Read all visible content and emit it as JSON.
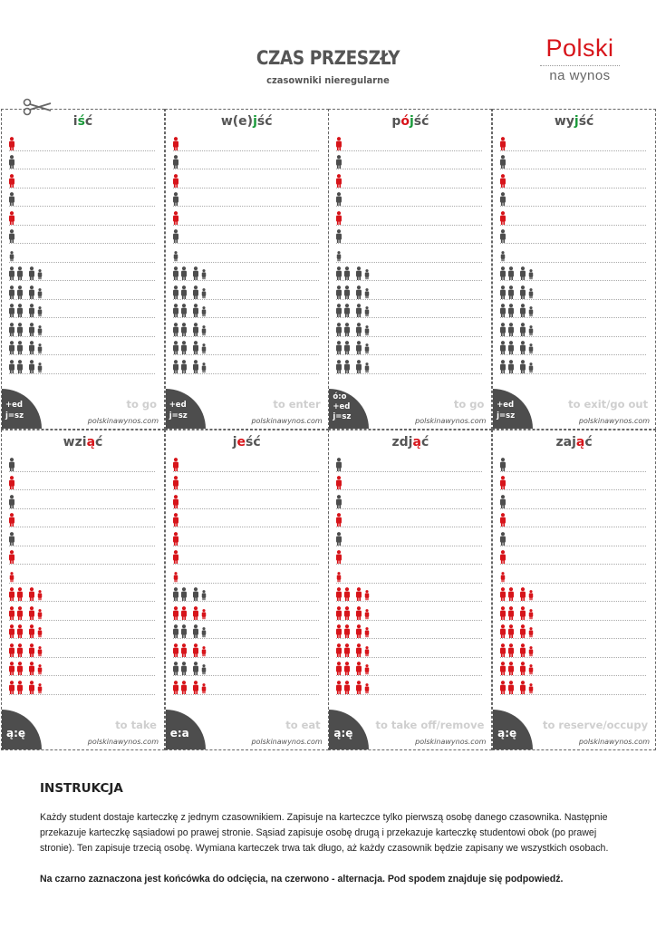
{
  "header": {
    "title": "CZAS PRZESZŁY",
    "subtitle": "czasowniki nieregularne"
  },
  "logo": {
    "line1": "Polski",
    "line2": "na wynos"
  },
  "colors": {
    "accent_red": "#d7141a",
    "accent_green": "#1a9a3a",
    "dark": "#4d4d4d"
  },
  "cards": [
    {
      "verb_parts": [
        {
          "t": "i",
          "c": ""
        },
        {
          "t": "ś",
          "c": "g"
        },
        {
          "t": "ć",
          "c": ""
        }
      ],
      "english": "to go",
      "site": "polskinawynos.com",
      "hint": [
        "+ed",
        "j=sz"
      ],
      "rows": [
        "r1",
        "d1",
        "r1",
        "d1",
        "r1",
        "d1",
        "d1s",
        "d2",
        "d2",
        "d2",
        "d2",
        "d2",
        "d2"
      ]
    },
    {
      "verb_parts": [
        {
          "t": "w(e)",
          "c": ""
        },
        {
          "t": "j",
          "c": "g"
        },
        {
          "t": "ść",
          "c": ""
        }
      ],
      "english": "to enter",
      "site": "polskinawynos.com",
      "hint": [
        "+ed",
        "j=sz"
      ],
      "rows": [
        "r1",
        "d1",
        "r1",
        "d1",
        "r1",
        "d1",
        "d1s",
        "d2",
        "d2",
        "d2",
        "d2",
        "d2",
        "d2"
      ]
    },
    {
      "verb_parts": [
        {
          "t": "p",
          "c": ""
        },
        {
          "t": "ó",
          "c": "r"
        },
        {
          "t": "j",
          "c": "g"
        },
        {
          "t": "ść",
          "c": ""
        }
      ],
      "english": "to go",
      "site": "polskinawynos.com",
      "hint": [
        "ó:o",
        "+ed",
        "j=sz"
      ],
      "rows": [
        "r1",
        "d1",
        "r1",
        "d1",
        "r1",
        "d1",
        "d1s",
        "d2",
        "d2",
        "d2",
        "d2",
        "d2",
        "d2"
      ]
    },
    {
      "verb_parts": [
        {
          "t": "wy",
          "c": ""
        },
        {
          "t": "j",
          "c": "g"
        },
        {
          "t": "ść",
          "c": ""
        }
      ],
      "english": "to exit/go out",
      "site": "polskinawynos.com",
      "hint": [
        "+ed",
        "j=sz"
      ],
      "rows": [
        "r1",
        "d1",
        "r1",
        "d1",
        "r1",
        "d1",
        "d1s",
        "d2",
        "d2",
        "d2",
        "d2",
        "d2",
        "d2"
      ]
    },
    {
      "verb_parts": [
        {
          "t": "wzi",
          "c": ""
        },
        {
          "t": "ą",
          "c": "r"
        },
        {
          "t": "ć",
          "c": ""
        }
      ],
      "english": "to take",
      "site": "polskinawynos.com",
      "hint": [
        "ą:ę"
      ],
      "rows": [
        "d1",
        "r1",
        "d1",
        "r1",
        "d1",
        "r1",
        "r1s",
        "r2",
        "r2",
        "r2",
        "r2",
        "r2",
        "r2"
      ]
    },
    {
      "verb_parts": [
        {
          "t": "j",
          "c": ""
        },
        {
          "t": "e",
          "c": "r"
        },
        {
          "t": "ść",
          "c": ""
        }
      ],
      "english": "to eat",
      "site": "polskinawynos.com",
      "hint": [
        "e:a"
      ],
      "rows": [
        "r1",
        "r1",
        "r1",
        "r1",
        "r1",
        "r1",
        "r1s",
        "d2",
        "r2",
        "d2",
        "r2",
        "d2",
        "r2"
      ]
    },
    {
      "verb_parts": [
        {
          "t": "zdj",
          "c": ""
        },
        {
          "t": "ą",
          "c": "r"
        },
        {
          "t": "ć",
          "c": ""
        }
      ],
      "english": "to take off/remove",
      "site": "polskinawynos.com",
      "hint": [
        "ą:ę"
      ],
      "rows": [
        "d1",
        "r1",
        "d1",
        "r1",
        "d1",
        "r1",
        "r1s",
        "r2",
        "r2",
        "r2",
        "r2",
        "r2",
        "r2"
      ]
    },
    {
      "verb_parts": [
        {
          "t": "zaj",
          "c": ""
        },
        {
          "t": "ą",
          "c": "r"
        },
        {
          "t": "ć",
          "c": ""
        }
      ],
      "english": "to reserve/occupy",
      "site": "polskinawynos.com",
      "hint": [
        "ą:ę"
      ],
      "rows": [
        "d1",
        "r1",
        "d1",
        "r1",
        "d1",
        "r1",
        "r1s",
        "r2",
        "r2",
        "r2",
        "r2",
        "r2",
        "r2"
      ]
    }
  ],
  "instructions": {
    "heading": "INSTRUKCJA",
    "paragraph": "Każdy student dostaje karteczkę z jednym czasownikiem. Zapisuje na karteczce tylko pierwszą osobę danego czasownika. Następnie przekazuje karteczkę sąsiadowi po prawej stronie. Sąsiad zapisuje osobę drugą i przekazuje karteczkę studentowi obok (po prawej stronie). Ten zapisuje trzecią osobę. Wymiana karteczek trwa tak długo, aż każdy czasownik będzie zapisany we wszystkich osobach.",
    "bold_note": "Na czarno zaznaczona jest końcówka do odcięcia, na czerwono - alternacja. Pod spodem znajduje się podpowiedź."
  }
}
